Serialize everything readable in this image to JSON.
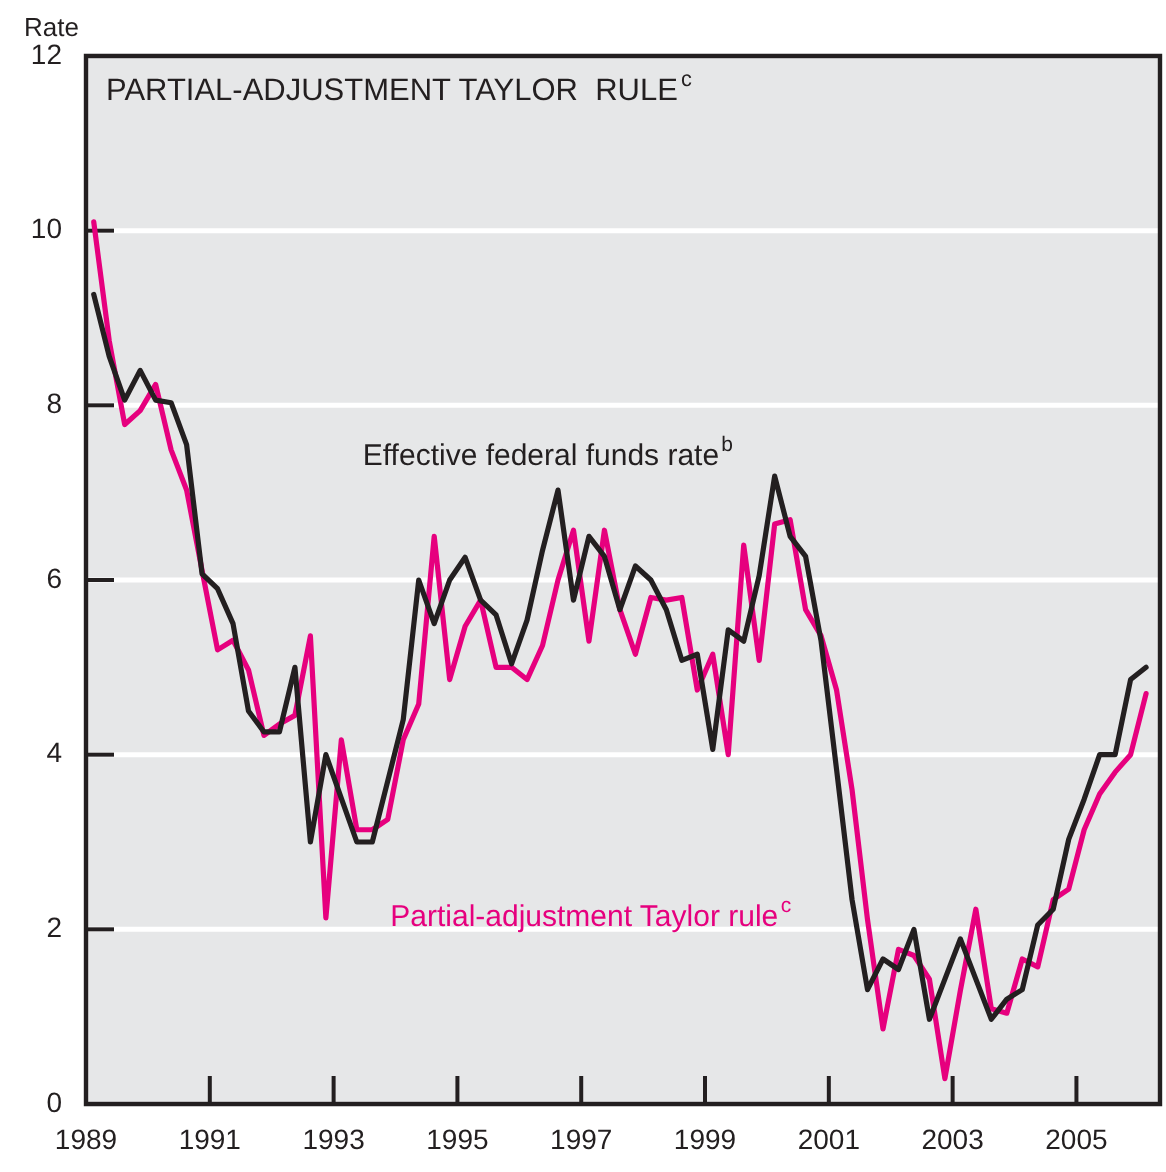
{
  "chart_data": {
    "type": "line",
    "title": "PARTIAL-ADJUSTMENT TAYLOR  RULE$^{c}$",
    "ylabel": "Rate",
    "x": [
      1989.125,
      1989.375,
      1989.625,
      1989.875,
      1990.125,
      1990.375,
      1990.625,
      1990.875,
      1991.125,
      1991.375,
      1991.625,
      1991.875,
      1992.125,
      1992.375,
      1992.625,
      1992.875,
      1993.125,
      1993.375,
      1993.625,
      1993.875,
      1994.125,
      1994.375,
      1994.625,
      1994.875,
      1995.125,
      1995.375,
      1995.625,
      1995.875,
      1996.125,
      1996.375,
      1996.625,
      1996.875,
      1997.125,
      1997.375,
      1997.625,
      1997.875,
      1998.125,
      1998.375,
      1998.625,
      1998.875,
      1999.125,
      1999.375,
      1999.625,
      1999.875,
      2000.125,
      2000.375,
      2000.625,
      2000.875,
      2001.125,
      2001.375,
      2001.625,
      2001.875,
      2002.125,
      2002.375,
      2002.625,
      2002.875,
      2003.125,
      2003.375,
      2003.625,
      2003.875,
      2004.125,
      2004.375,
      2004.625,
      2004.875,
      2005.125,
      2005.375,
      2005.625,
      2005.875,
      2006.125
    ],
    "series": [
      {
        "name": "Effective federal funds rate$^{b}$",
        "color": "#231f20",
        "values": [
          9.27,
          8.56,
          8.06,
          8.4,
          8.06,
          8.03,
          7.55,
          6.07,
          5.9,
          5.5,
          4.5,
          4.26,
          4.26,
          5.0,
          3.0,
          4.0,
          3.5,
          3.0,
          3.0,
          3.7,
          4.4,
          6.0,
          5.5,
          6.0,
          6.26,
          5.77,
          5.6,
          5.04,
          5.54,
          6.34,
          7.03,
          5.77,
          6.5,
          6.27,
          5.66,
          6.16,
          6.0,
          5.66,
          5.08,
          5.15,
          4.06,
          5.43,
          5.3,
          6.05,
          7.19,
          6.5,
          6.27,
          5.3,
          3.83,
          2.34,
          1.31,
          1.66,
          1.54,
          2.0,
          0.97,
          1.43,
          1.89,
          1.43,
          0.97,
          1.2,
          1.31,
          2.05,
          2.23,
          3.03,
          3.49,
          4.0,
          4.0,
          4.86,
          5.0
        ]
      },
      {
        "name": "Partial-adjustment Taylor rule$^{c}$",
        "color": "#e6007e",
        "values": [
          10.1,
          8.74,
          7.78,
          7.94,
          8.24,
          7.49,
          7.03,
          6.11,
          5.2,
          5.31,
          4.97,
          4.22,
          4.35,
          4.45,
          5.36,
          2.13,
          4.17,
          3.14,
          3.14,
          3.26,
          4.17,
          4.58,
          6.5,
          4.86,
          5.47,
          5.77,
          5.0,
          5.0,
          4.86,
          5.25,
          6.0,
          6.57,
          5.3,
          6.57,
          5.66,
          5.15,
          5.8,
          5.77,
          5.8,
          4.74,
          5.15,
          4.0,
          6.4,
          5.08,
          6.64,
          6.69,
          5.66,
          5.36,
          4.74,
          3.6,
          2.11,
          0.86,
          1.77,
          1.7,
          1.43,
          0.29,
          1.3,
          2.23,
          1.09,
          1.04,
          1.66,
          1.57,
          2.34,
          2.46,
          3.14,
          3.55,
          3.8,
          4.0,
          4.7
        ]
      }
    ],
    "xlim": [
      1989,
      2006.35
    ],
    "xticks": [
      1989,
      1991,
      1993,
      1995,
      1997,
      1999,
      2001,
      2003,
      2005
    ],
    "ylim": [
      0,
      12
    ],
    "yticks": [
      0,
      2,
      4,
      6,
      8,
      10,
      12
    ],
    "grid": "y",
    "legend": false,
    "marker": "none",
    "line_style": "solid"
  }
}
